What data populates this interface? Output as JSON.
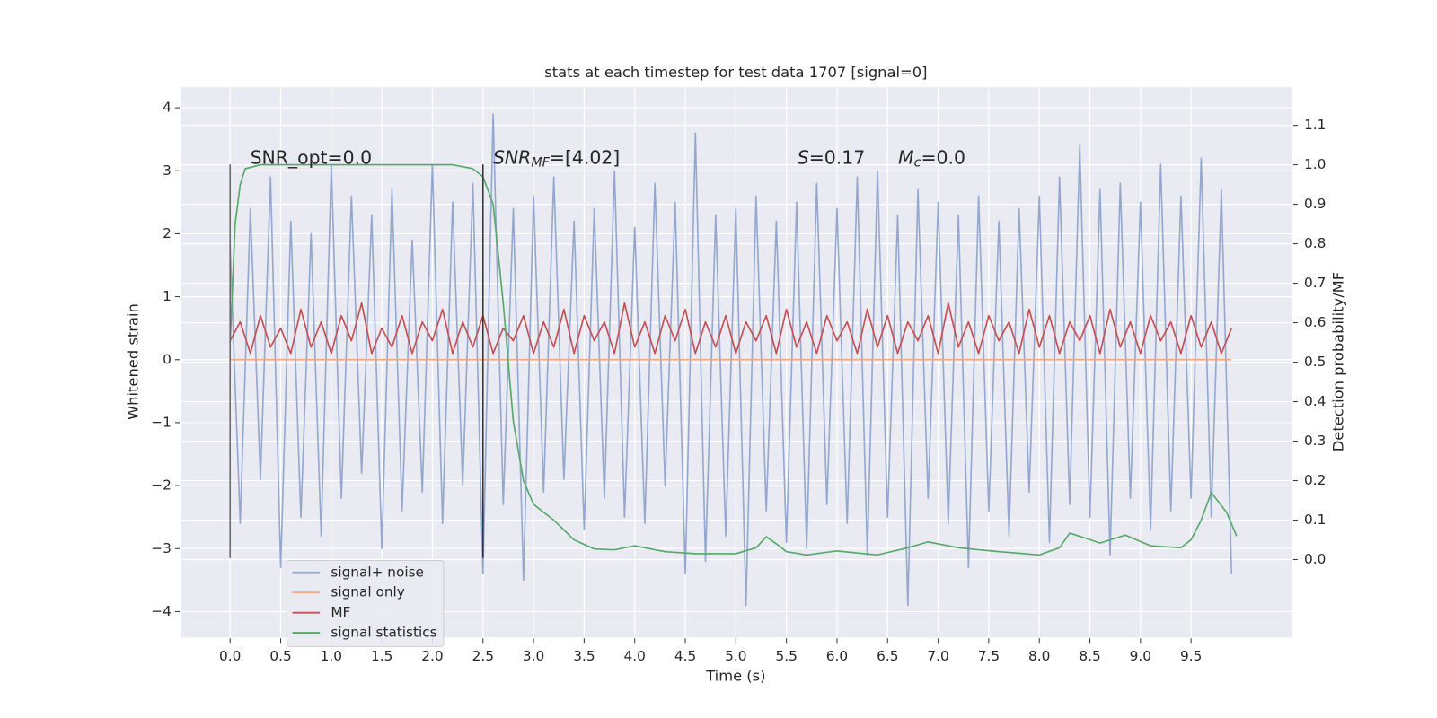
{
  "chart_data": {
    "type": "line",
    "title": "stats at each timestep for test data 1707 [signal=0]",
    "xlabel": "Time (s)",
    "ylabel": "Whitened strain",
    "y2label": "Detection probability/MF",
    "xlim": [
      -0.49,
      10.5
    ],
    "ylim": [
      -4.41,
      4.33
    ],
    "y2lim": [
      -0.197,
      1.197
    ],
    "xticks": [
      {
        "value": 0,
        "label": "0.0"
      },
      0.5,
      {
        "value": 1,
        "label": "1.0"
      },
      1.5,
      {
        "value": 2,
        "label": "2.0"
      },
      2.5,
      {
        "value": 3,
        "label": "3.0"
      },
      3.5,
      {
        "value": 4,
        "label": "4.0"
      },
      4.5,
      {
        "value": 5,
        "label": "5.0"
      },
      5.5,
      {
        "value": 6,
        "label": "6.0"
      },
      6.5,
      {
        "value": 7,
        "label": "7.0"
      },
      7.5,
      {
        "value": 8,
        "label": "8.0"
      },
      8.5,
      {
        "value": 9,
        "label": "9.0"
      },
      9.5
    ],
    "yticks": [
      {
        "value": -4,
        "label": "−4"
      },
      {
        "value": -3,
        "label": "−3"
      },
      {
        "value": -2,
        "label": "−2"
      },
      {
        "value": -1,
        "label": "−1"
      },
      0,
      1,
      2,
      3,
      4
    ],
    "y2ticks": [
      {
        "value": 0,
        "label": "0.0"
      },
      0.1,
      0.2,
      0.3,
      0.4,
      0.5,
      0.6,
      0.7,
      0.8,
      0.9,
      {
        "value": 1,
        "label": "1.0"
      },
      1.1
    ],
    "grid": true,
    "x": [
      0.0,
      0.1,
      0.2,
      0.3,
      0.4,
      0.5,
      0.6,
      0.7,
      0.8,
      0.9,
      1.0,
      1.1,
      1.2,
      1.3,
      1.4,
      1.5,
      1.6,
      1.7,
      1.8,
      1.9,
      2.0,
      2.1,
      2.2,
      2.3,
      2.4,
      2.5,
      2.6,
      2.7,
      2.8,
      2.9,
      3.0,
      3.1,
      3.2,
      3.3,
      3.4,
      3.5,
      3.6,
      3.7,
      3.8,
      3.9,
      4.0,
      4.1,
      4.2,
      4.3,
      4.4,
      4.5,
      4.6,
      4.7,
      4.8,
      4.9,
      5.0,
      5.1,
      5.2,
      5.3,
      5.4,
      5.5,
      5.6,
      5.7,
      5.8,
      5.9,
      6.0,
      6.1,
      6.2,
      6.3,
      6.4,
      6.5,
      6.6,
      6.7,
      6.8,
      6.9,
      7.0,
      7.1,
      7.2,
      7.3,
      7.4,
      7.5,
      7.6,
      7.7,
      7.8,
      7.9,
      8.0,
      8.1,
      8.2,
      8.3,
      8.4,
      8.5,
      8.6,
      8.7,
      8.8,
      8.9,
      9.0,
      9.1,
      9.2,
      9.3,
      9.4,
      9.5,
      9.6,
      9.7,
      9.8,
      9.9
    ],
    "series": [
      {
        "name": "signal+ noise",
        "color": "#94a8cf",
        "axis": "y",
        "values": [
          1.8,
          -2.6,
          2.4,
          -1.9,
          2.9,
          -3.3,
          2.2,
          -2.5,
          2.0,
          -2.8,
          3.1,
          -2.2,
          2.6,
          -1.8,
          2.3,
          -3.0,
          2.7,
          -2.4,
          1.9,
          -2.1,
          3.1,
          -2.6,
          2.5,
          -2.0,
          2.8,
          -3.4,
          3.9,
          -2.3,
          2.4,
          -3.5,
          2.6,
          -2.1,
          2.9,
          -1.9,
          2.2,
          -2.7,
          2.4,
          -2.2,
          3.0,
          -2.5,
          2.1,
          -2.6,
          2.8,
          -2.0,
          2.5,
          -3.4,
          3.6,
          -3.2,
          2.3,
          -2.8,
          2.4,
          -3.9,
          2.6,
          -2.4,
          2.2,
          -2.9,
          2.5,
          -3.0,
          2.8,
          -2.3,
          2.4,
          -2.6,
          2.9,
          -3.1,
          3.0,
          -2.5,
          2.3,
          -3.9,
          2.7,
          -2.2,
          2.5,
          -2.6,
          2.3,
          -3.3,
          2.6,
          -2.4,
          2.2,
          -2.8,
          2.4,
          -2.1,
          2.6,
          -2.9,
          2.9,
          -2.3,
          3.4,
          -2.5,
          2.7,
          -3.1,
          2.8,
          -2.2,
          2.5,
          -2.7,
          3.1,
          -2.4,
          2.6,
          -2.2,
          3.2,
          -2.5,
          2.7,
          -3.4
        ]
      },
      {
        "name": "signal only",
        "color": "#eeaa88",
        "axis": "y",
        "x": [
          0.0,
          9.9
        ],
        "values": [
          0,
          0
        ]
      },
      {
        "name": "MF",
        "color": "#c44e52",
        "axis": "y",
        "values": [
          0.3,
          0.6,
          0.1,
          0.7,
          0.2,
          0.5,
          0.1,
          0.8,
          0.2,
          0.6,
          0.1,
          0.7,
          0.3,
          0.9,
          0.1,
          0.5,
          0.2,
          0.7,
          0.1,
          0.6,
          0.3,
          0.8,
          0.1,
          0.6,
          0.2,
          0.7,
          0.1,
          0.5,
          0.3,
          0.7,
          0.1,
          0.6,
          0.2,
          0.8,
          0.1,
          0.7,
          0.3,
          0.6,
          0.1,
          0.9,
          0.2,
          0.6,
          0.1,
          0.7,
          0.3,
          0.8,
          0.1,
          0.6,
          0.2,
          0.7,
          0.1,
          0.6,
          0.3,
          0.7,
          0.1,
          0.8,
          0.2,
          0.6,
          0.1,
          0.7,
          0.3,
          0.6,
          0.1,
          0.8,
          0.2,
          0.7,
          0.1,
          0.6,
          0.3,
          0.7,
          0.1,
          0.9,
          0.2,
          0.6,
          0.1,
          0.7,
          0.3,
          0.6,
          0.1,
          0.8,
          0.2,
          0.7,
          0.1,
          0.6,
          0.3,
          0.7,
          0.1,
          0.8,
          0.2,
          0.6,
          0.1,
          0.7,
          0.3,
          0.6,
          0.1,
          0.7,
          0.2,
          0.6,
          0.1,
          0.5
        ]
      },
      {
        "name": "signal statistics",
        "color": "#55a868",
        "axis": "y2",
        "x": [
          0.0,
          0.05,
          0.1,
          0.15,
          0.3,
          1.0,
          2.0,
          2.2,
          2.4,
          2.5,
          2.6,
          2.7,
          2.75,
          2.8,
          2.9,
          3.0,
          3.1,
          3.2,
          3.4,
          3.6,
          3.8,
          4.0,
          4.3,
          4.6,
          5.0,
          5.2,
          5.3,
          5.4,
          5.5,
          5.7,
          6.0,
          6.4,
          6.7,
          6.9,
          7.2,
          7.6,
          8.0,
          8.2,
          8.3,
          8.45,
          8.6,
          8.85,
          9.1,
          9.4,
          9.5,
          9.6,
          9.7,
          9.85,
          9.95
        ],
        "values": [
          0.55,
          0.85,
          0.95,
          0.99,
          1.0,
          1.0,
          1.0,
          1.0,
          0.99,
          0.97,
          0.9,
          0.65,
          0.5,
          0.35,
          0.2,
          0.14,
          0.12,
          0.1,
          0.05,
          0.027,
          0.025,
          0.035,
          0.02,
          0.015,
          0.015,
          0.03,
          0.058,
          0.04,
          0.02,
          0.012,
          0.022,
          0.012,
          0.03,
          0.045,
          0.03,
          0.02,
          0.012,
          0.03,
          0.067,
          0.055,
          0.042,
          0.062,
          0.035,
          0.03,
          0.05,
          0.1,
          0.17,
          0.12,
          0.06
        ]
      }
    ],
    "vlines": [
      {
        "x": 0,
        "ymin": -3.15,
        "ymax": 3.1,
        "color": "#666666"
      },
      {
        "x": 2.5,
        "ymin": -3.15,
        "ymax": 3.1,
        "color": "#333333"
      }
    ],
    "annotations": [
      {
        "rest": "SNR_opt=0.0"
      },
      {
        "main": "SNR",
        "sub": "MF",
        "rest": "=[4.02]"
      },
      {
        "main": "S",
        "rest": "=0.17"
      },
      {
        "main": "M",
        "sub": "c",
        "rest": "=0.0"
      }
    ]
  }
}
